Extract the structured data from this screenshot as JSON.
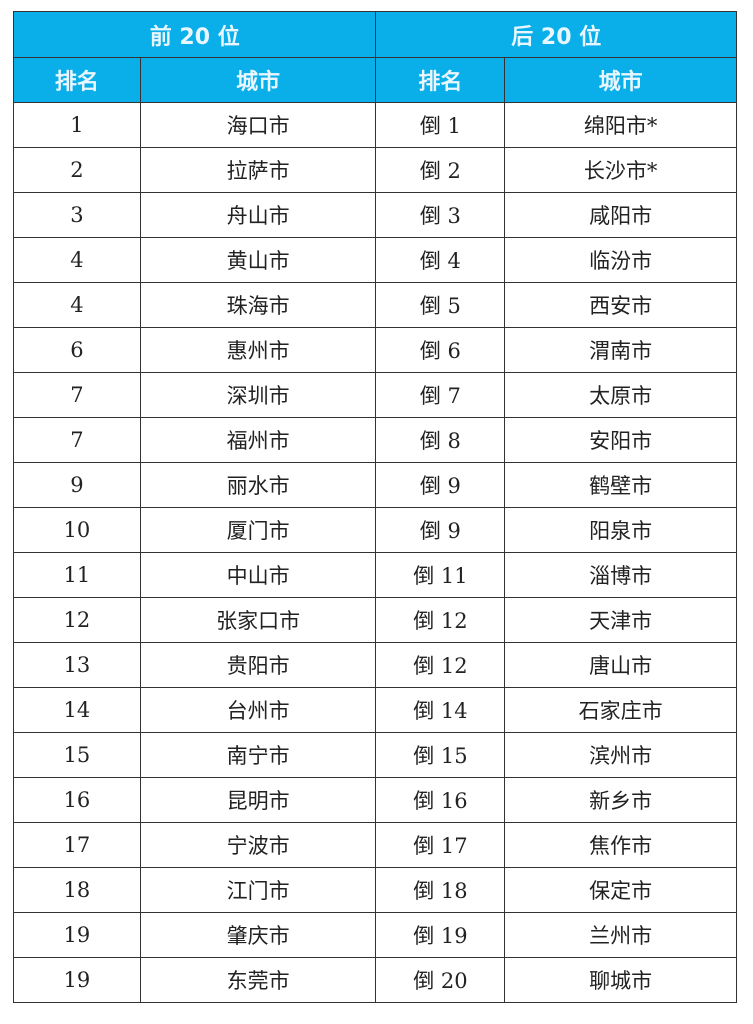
{
  "header": {
    "top_group": "前 20 位",
    "bottom_group": "后 20 位",
    "rank_label": "排名",
    "city_label": "城市"
  },
  "colors": {
    "header_bg": "#0aaee8"
  },
  "rows": [
    {
      "rank": "1",
      "city": "海口市",
      "rrank": "倒 1",
      "rcity": "绵阳市*"
    },
    {
      "rank": "2",
      "city": "拉萨市",
      "rrank": "倒 2",
      "rcity": "长沙市*"
    },
    {
      "rank": "3",
      "city": "舟山市",
      "rrank": "倒 3",
      "rcity": "咸阳市"
    },
    {
      "rank": "4",
      "city": "黄山市",
      "rrank": "倒 4",
      "rcity": "临汾市"
    },
    {
      "rank": "4",
      "city": "珠海市",
      "rrank": "倒 5",
      "rcity": "西安市"
    },
    {
      "rank": "6",
      "city": "惠州市",
      "rrank": "倒 6",
      "rcity": "渭南市"
    },
    {
      "rank": "7",
      "city": "深圳市",
      "rrank": "倒 7",
      "rcity": "太原市"
    },
    {
      "rank": "7",
      "city": "福州市",
      "rrank": "倒 8",
      "rcity": "安阳市"
    },
    {
      "rank": "9",
      "city": "丽水市",
      "rrank": "倒 9",
      "rcity": "鹤壁市"
    },
    {
      "rank": "10",
      "city": "厦门市",
      "rrank": "倒 9",
      "rcity": "阳泉市"
    },
    {
      "rank": "11",
      "city": "中山市",
      "rrank": "倒 11",
      "rcity": "淄博市"
    },
    {
      "rank": "12",
      "city": "张家口市",
      "rrank": "倒 12",
      "rcity": "天津市"
    },
    {
      "rank": "13",
      "city": "贵阳市",
      "rrank": "倒 12",
      "rcity": "唐山市"
    },
    {
      "rank": "14",
      "city": "台州市",
      "rrank": "倒 14",
      "rcity": "石家庄市"
    },
    {
      "rank": "15",
      "city": "南宁市",
      "rrank": "倒 15",
      "rcity": "滨州市"
    },
    {
      "rank": "16",
      "city": "昆明市",
      "rrank": "倒 16",
      "rcity": "新乡市"
    },
    {
      "rank": "17",
      "city": "宁波市",
      "rrank": "倒 17",
      "rcity": "焦作市"
    },
    {
      "rank": "18",
      "city": "江门市",
      "rrank": "倒 18",
      "rcity": "保定市"
    },
    {
      "rank": "19",
      "city": "肇庆市",
      "rrank": "倒 19",
      "rcity": "兰州市"
    },
    {
      "rank": "19",
      "city": "东莞市",
      "rrank": "倒 20",
      "rcity": "聊城市"
    }
  ]
}
